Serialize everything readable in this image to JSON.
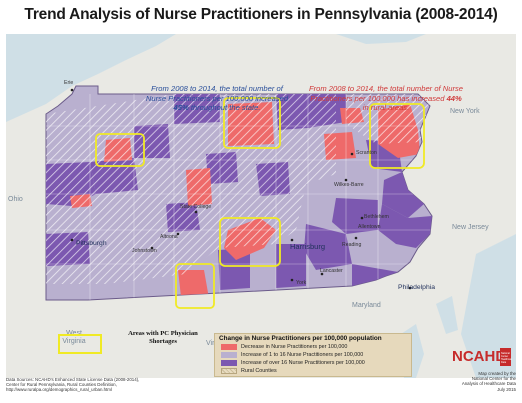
{
  "title": "Trend Analysis of Nurse Practitioners in Pennsylvania (2008-2014)",
  "captions": {
    "left": {
      "text_before": "From 2008 to 2014, the total number of Nurse Practitioners per 100,000  increased ",
      "highlight": "45%",
      "text_after": " throughout the state."
    },
    "right": {
      "text_before": "From 2008 to 2014, the total number of Nurse Practitioners per 100,000 has increased ",
      "highlight": "44%",
      "text_after": " in rural areas."
    }
  },
  "place_labels": {
    "erie": "Erie",
    "new_york": "New York",
    "ohio": "Ohio",
    "pittsburgh": "Pittsburgh",
    "harrisburg": "Harrisburg",
    "philadelphia": "Philadelphia",
    "scranton": "Scranton",
    "wilkes_barre": "Wilkes-Barre",
    "state_college": "State College",
    "altoona": "Altoona",
    "johnstown": "Johnstown",
    "reading": "Reading",
    "bethlehem": "Bethlehem",
    "allentown": "Allentown",
    "lancaster": "Lancaster",
    "york": "York",
    "new_jersey": "New Jersey",
    "west_virginia": "West Virginia",
    "maryland": "Maryland",
    "virginia": "Virginia"
  },
  "shortage_legend": {
    "label": "Areas with PC Physician Shortages"
  },
  "legend": {
    "title": "Change in Nurse Practitioners per 100,000 population",
    "items": [
      {
        "label": "Decrease in Nurse Practitioners per 100,000",
        "color": "#ee6a6a"
      },
      {
        "label": "Increase of 1 to 16 Nurse Practitioners per 100,000",
        "color": "#b9b0cf"
      },
      {
        "label": "Increase of over 16 Nurse Practitioners per 100,000",
        "color": "#7c58b0"
      },
      {
        "label": "Rural Counties",
        "color": "#e8dcc0",
        "hatched": true
      }
    ]
  },
  "sources": {
    "line1": "Data Sources: NCAHD's Enhanced State License Data (2008-2014),",
    "line2": "Center for Rural Pennsylvania, Rural Counties Definition,",
    "line3": "http://www.ruralpa.org/demographics_rural_urban.html"
  },
  "logo": {
    "name": "NCAHD",
    "subtitle": "National Center for the Analysis of Healthcare Data"
  },
  "credit": {
    "line1": "Map created by the",
    "line2": "National Center for the",
    "line3": "Analysis of Healthcare Data",
    "line4": "July 2015"
  },
  "colors": {
    "decrease": "#ee6a6a",
    "increase_low": "#b9b0cf",
    "increase_high": "#7c58b0",
    "shortage_outline": "#f0ea25",
    "water": "#cfdfe6",
    "land": "#e8e8e4"
  }
}
